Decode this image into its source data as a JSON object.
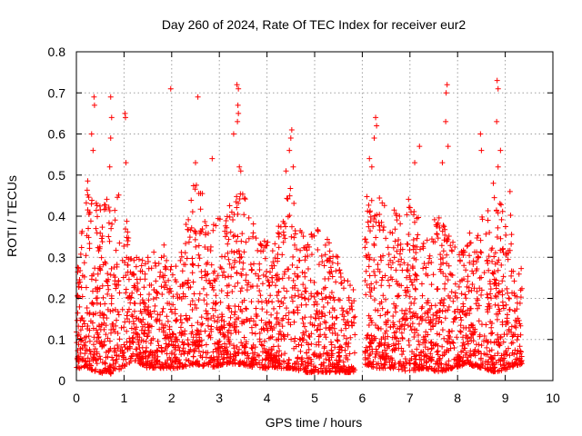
{
  "chart_data": {
    "type": "scatter",
    "title": "Day 260 of 2024, Rate Of TEC Index for receiver eur2",
    "xlabel": "GPS time / hours",
    "ylabel": "ROTI / TECUs",
    "xlim": [
      0,
      10
    ],
    "ylim": [
      0,
      0.8
    ],
    "xticks": [
      "0",
      "1",
      "2",
      "3",
      "4",
      "5",
      "6",
      "7",
      "8",
      "9",
      "10"
    ],
    "yticks": [
      "0",
      "0.1",
      "0.2",
      "0.3",
      "0.4",
      "0.5",
      "0.6",
      "0.7",
      "0.8"
    ],
    "grid": true,
    "marker": "+",
    "color": "#ff0000",
    "data_gap_hours": [
      5.85,
      6.05
    ],
    "series": [
      {
        "name": "ROTI",
        "envelope": [
          {
            "x": 0.0,
            "y_min": 0.03,
            "y_max": 0.26
          },
          {
            "x": 0.25,
            "y_min": 0.03,
            "y_max": 0.5
          },
          {
            "x": 0.45,
            "y_min": 0.02,
            "y_max": 0.42
          },
          {
            "x": 0.7,
            "y_min": 0.015,
            "y_max": 0.45
          },
          {
            "x": 0.95,
            "y_min": 0.03,
            "y_max": 0.48
          },
          {
            "x": 1.2,
            "y_min": 0.05,
            "y_max": 0.3
          },
          {
            "x": 1.5,
            "y_min": 0.03,
            "y_max": 0.3
          },
          {
            "x": 1.8,
            "y_min": 0.03,
            "y_max": 0.34
          },
          {
            "x": 2.1,
            "y_min": 0.03,
            "y_max": 0.28
          },
          {
            "x": 2.5,
            "y_min": 0.04,
            "y_max": 0.5
          },
          {
            "x": 2.8,
            "y_min": 0.03,
            "y_max": 0.45
          },
          {
            "x": 3.1,
            "y_min": 0.04,
            "y_max": 0.38
          },
          {
            "x": 3.4,
            "y_min": 0.04,
            "y_max": 0.5
          },
          {
            "x": 3.8,
            "y_min": 0.03,
            "y_max": 0.35
          },
          {
            "x": 4.1,
            "y_min": 0.03,
            "y_max": 0.35
          },
          {
            "x": 4.5,
            "y_min": 0.03,
            "y_max": 0.48
          },
          {
            "x": 4.8,
            "y_min": 0.02,
            "y_max": 0.34
          },
          {
            "x": 5.1,
            "y_min": 0.02,
            "y_max": 0.38
          },
          {
            "x": 5.5,
            "y_min": 0.02,
            "y_max": 0.3
          },
          {
            "x": 5.8,
            "y_min": 0.02,
            "y_max": 0.22
          },
          {
            "x": 6.05,
            "y_min": 0.04,
            "y_max": 0.45
          },
          {
            "x": 6.3,
            "y_min": 0.03,
            "y_max": 0.45
          },
          {
            "x": 6.7,
            "y_min": 0.03,
            "y_max": 0.42
          },
          {
            "x": 7.0,
            "y_min": 0.02,
            "y_max": 0.45
          },
          {
            "x": 7.3,
            "y_min": 0.03,
            "y_max": 0.38
          },
          {
            "x": 7.6,
            "y_min": 0.02,
            "y_max": 0.4
          },
          {
            "x": 7.9,
            "y_min": 0.03,
            "y_max": 0.35
          },
          {
            "x": 8.2,
            "y_min": 0.04,
            "y_max": 0.35
          },
          {
            "x": 8.5,
            "y_min": 0.03,
            "y_max": 0.4
          },
          {
            "x": 8.8,
            "y_min": 0.02,
            "y_max": 0.45
          },
          {
            "x": 9.1,
            "y_min": 0.03,
            "y_max": 0.42
          },
          {
            "x": 9.35,
            "y_min": 0.04,
            "y_max": 0.27
          }
        ],
        "outliers": [
          {
            "x": 0.37,
            "y": 0.69
          },
          {
            "x": 0.38,
            "y": 0.67
          },
          {
            "x": 0.32,
            "y": 0.6
          },
          {
            "x": 0.35,
            "y": 0.56
          },
          {
            "x": 0.72,
            "y": 0.69
          },
          {
            "x": 0.74,
            "y": 0.64
          },
          {
            "x": 0.72,
            "y": 0.59
          },
          {
            "x": 0.7,
            "y": 0.52
          },
          {
            "x": 1.02,
            "y": 0.65
          },
          {
            "x": 1.03,
            "y": 0.64
          },
          {
            "x": 1.04,
            "y": 0.53
          },
          {
            "x": 1.98,
            "y": 0.71
          },
          {
            "x": 2.55,
            "y": 0.69
          },
          {
            "x": 2.5,
            "y": 0.53
          },
          {
            "x": 2.85,
            "y": 0.54
          },
          {
            "x": 3.37,
            "y": 0.72
          },
          {
            "x": 3.4,
            "y": 0.71
          },
          {
            "x": 3.39,
            "y": 0.67
          },
          {
            "x": 3.4,
            "y": 0.65
          },
          {
            "x": 3.38,
            "y": 0.63
          },
          {
            "x": 3.3,
            "y": 0.6
          },
          {
            "x": 3.42,
            "y": 0.52
          },
          {
            "x": 3.45,
            "y": 0.51
          },
          {
            "x": 4.52,
            "y": 0.61
          },
          {
            "x": 4.5,
            "y": 0.59
          },
          {
            "x": 4.47,
            "y": 0.56
          },
          {
            "x": 4.4,
            "y": 0.51
          },
          {
            "x": 4.55,
            "y": 0.52
          },
          {
            "x": 6.28,
            "y": 0.64
          },
          {
            "x": 6.3,
            "y": 0.62
          },
          {
            "x": 6.25,
            "y": 0.59
          },
          {
            "x": 6.15,
            "y": 0.54
          },
          {
            "x": 6.2,
            "y": 0.52
          },
          {
            "x": 7.2,
            "y": 0.57
          },
          {
            "x": 7.1,
            "y": 0.53
          },
          {
            "x": 7.78,
            "y": 0.72
          },
          {
            "x": 7.76,
            "y": 0.7
          },
          {
            "x": 7.75,
            "y": 0.63
          },
          {
            "x": 7.8,
            "y": 0.57
          },
          {
            "x": 7.68,
            "y": 0.53
          },
          {
            "x": 8.48,
            "y": 0.6
          },
          {
            "x": 8.5,
            "y": 0.56
          },
          {
            "x": 8.83,
            "y": 0.73
          },
          {
            "x": 8.85,
            "y": 0.71
          },
          {
            "x": 8.82,
            "y": 0.63
          },
          {
            "x": 8.9,
            "y": 0.56
          },
          {
            "x": 8.85,
            "y": 0.52
          },
          {
            "x": 8.75,
            "y": 0.48
          },
          {
            "x": 9.1,
            "y": 0.46
          }
        ]
      }
    ]
  }
}
